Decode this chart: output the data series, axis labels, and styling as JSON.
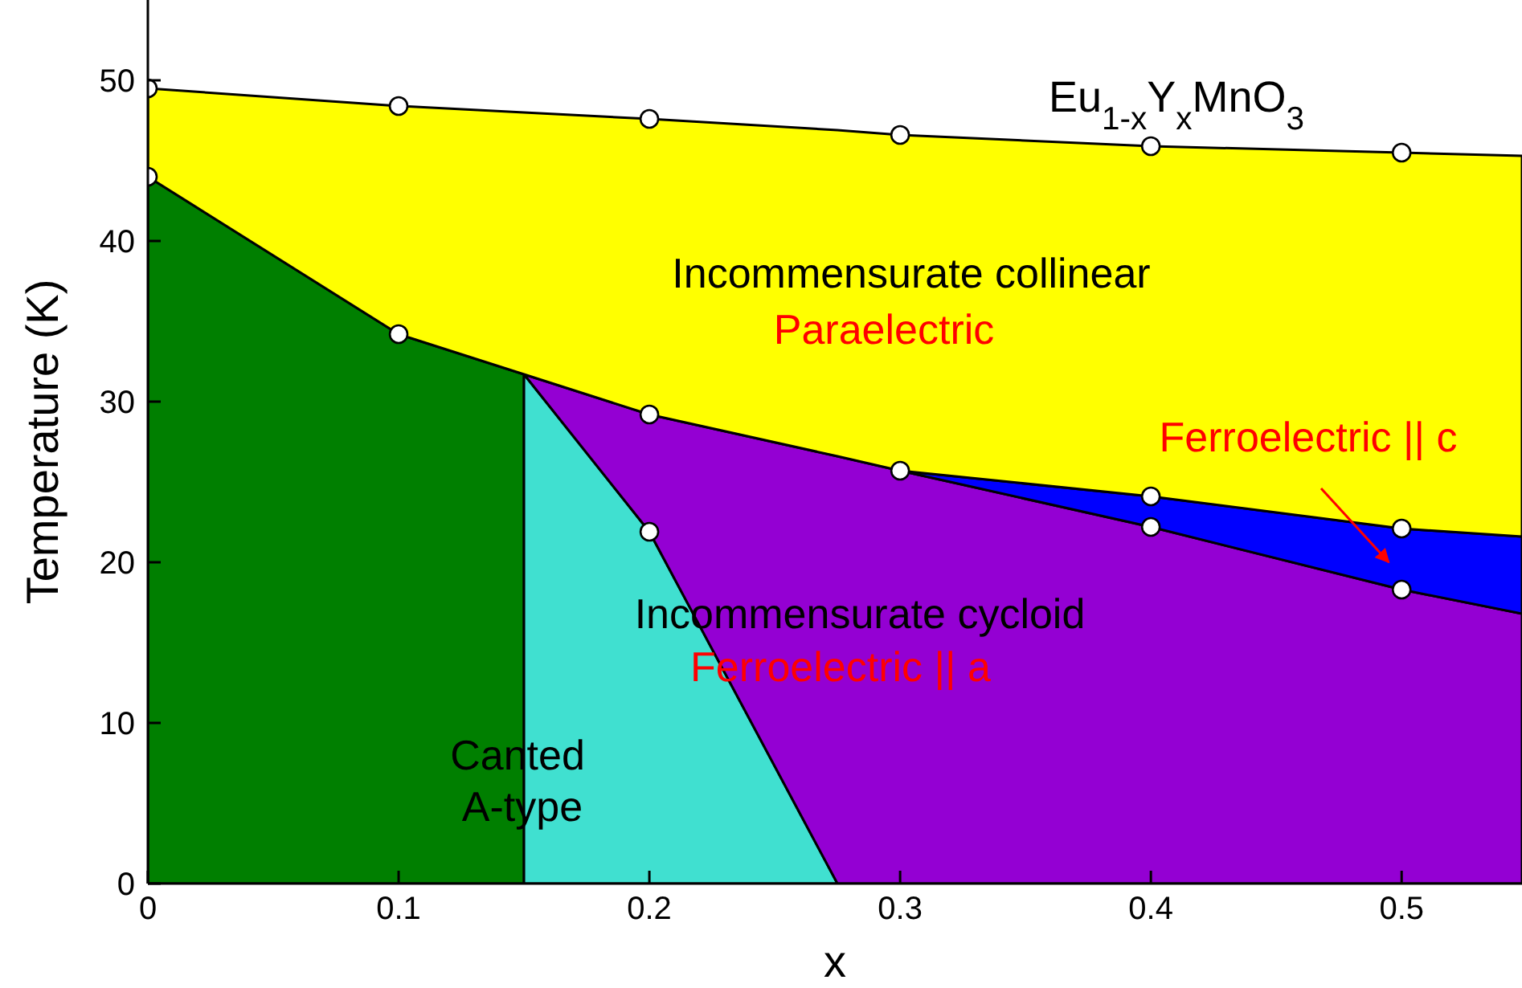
{
  "chart_data": {
    "type": "area",
    "stacked": true,
    "xlabel": "x",
    "ylabel": "Temperature (K)",
    "xlim": [
      0,
      0.548
    ],
    "ylim": [
      0,
      55
    ],
    "xticks": [
      0,
      0.1,
      0.2,
      0.3,
      0.4,
      0.5
    ],
    "yticks": [
      0,
      10,
      20,
      30,
      40,
      50
    ],
    "line_style": "solid",
    "x": [
      0,
      0.1,
      0.15,
      0.15,
      0.2,
      0.275,
      0.3,
      0.4,
      0.5,
      0.548
    ],
    "series": [
      {
        "color": "#007f00",
        "values": [
          44,
          34.2,
          31.7,
          0,
          null,
          null,
          null,
          null,
          null,
          null
        ]
      },
      {
        "color": "#40e0d0",
        "values": [
          null,
          null,
          0,
          31.7,
          21.9,
          0,
          null,
          null,
          null,
          null
        ]
      },
      {
        "color": "#9400d3",
        "values": [
          null,
          null,
          0,
          0,
          7.3,
          26.6,
          25.7,
          22.2,
          18.3,
          16.8
        ]
      },
      {
        "color": "#0000ff",
        "values": [
          null,
          null,
          null,
          null,
          null,
          null,
          0,
          1.9,
          3.8,
          4.8
        ]
      },
      {
        "color": "#ffff00",
        "values": [
          5.5,
          14.2,
          16.3,
          16.3,
          18.4,
          20.3,
          20.9,
          21.8,
          23.4,
          23.7
        ]
      },
      {
        "type": "scatter",
        "color": "#ffffff",
        "marker": "circle",
        "x": [
          0,
          0.1,
          0.2,
          0.3,
          0.4,
          0.5,
          0,
          0.1,
          0.2,
          0.3,
          0.4,
          0.5,
          0.2,
          0.4,
          0.5
        ],
        "values": [
          49.5,
          48.4,
          47.6,
          46.6,
          45.9,
          45.5,
          44,
          34.2,
          29.2,
          25.7,
          24.1,
          22.1,
          21.9,
          22.2,
          18.3
        ]
      }
    ],
    "annotations": [
      "Eu$_{1-x}$Y$_{x}$MnO$_{3}$",
      "Incommensurate collinear",
      "Paraelectric",
      "Ferroelectric || c",
      "Incommensurate cycloid",
      "Ferroelectric || a",
      "Canted",
      "A-type"
    ]
  }
}
